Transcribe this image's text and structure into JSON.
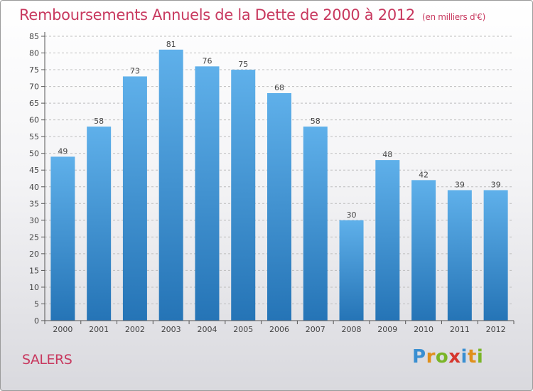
{
  "header": {
    "title": "Remboursements Annuels de la Dette de 2000 à 2012",
    "subtitle": "(en milliers d'€)"
  },
  "footer": {
    "city": "SALERS",
    "logo": {
      "letters": [
        "P",
        "r",
        "o",
        "x",
        "i",
        "t",
        "i"
      ],
      "colors": [
        "#3a8fd1",
        "#e0901c",
        "#7ab527",
        "#d6362d",
        "#3a8fd1",
        "#e0901c",
        "#7ab527"
      ]
    }
  },
  "colors": {
    "bar_top": "#5fb0ea",
    "bar_bottom": "#2574b6",
    "grid": "#bdbdbd",
    "axis": "#555555"
  },
  "chart_data": {
    "type": "bar",
    "title": "Remboursements Annuels de la Dette de 2000 à 2012",
    "subtitle": "(en milliers d'€)",
    "categories": [
      "2000",
      "2001",
      "2002",
      "2003",
      "2004",
      "2005",
      "2006",
      "2007",
      "2008",
      "2009",
      "2010",
      "2011",
      "2012"
    ],
    "values": [
      49,
      58,
      73,
      81,
      76,
      75,
      68,
      58,
      30,
      48,
      42,
      39,
      39
    ],
    "data_labels": [
      "49",
      "58",
      "73",
      "81",
      "76",
      "75",
      "68",
      "58",
      "30",
      "48",
      "42",
      "39",
      "39"
    ],
    "ylim": [
      0,
      85
    ],
    "yticks": [
      0,
      5,
      10,
      15,
      20,
      25,
      30,
      35,
      40,
      45,
      50,
      55,
      60,
      65,
      70,
      75,
      80,
      85
    ],
    "ytick_labels": [
      "0",
      "5",
      "10",
      "15",
      "20",
      "25",
      "30",
      "35",
      "40",
      "45",
      "50",
      "55",
      "60",
      "65",
      "70",
      "75",
      "80",
      "85"
    ],
    "grid": true,
    "xlabel": "",
    "ylabel": ""
  }
}
